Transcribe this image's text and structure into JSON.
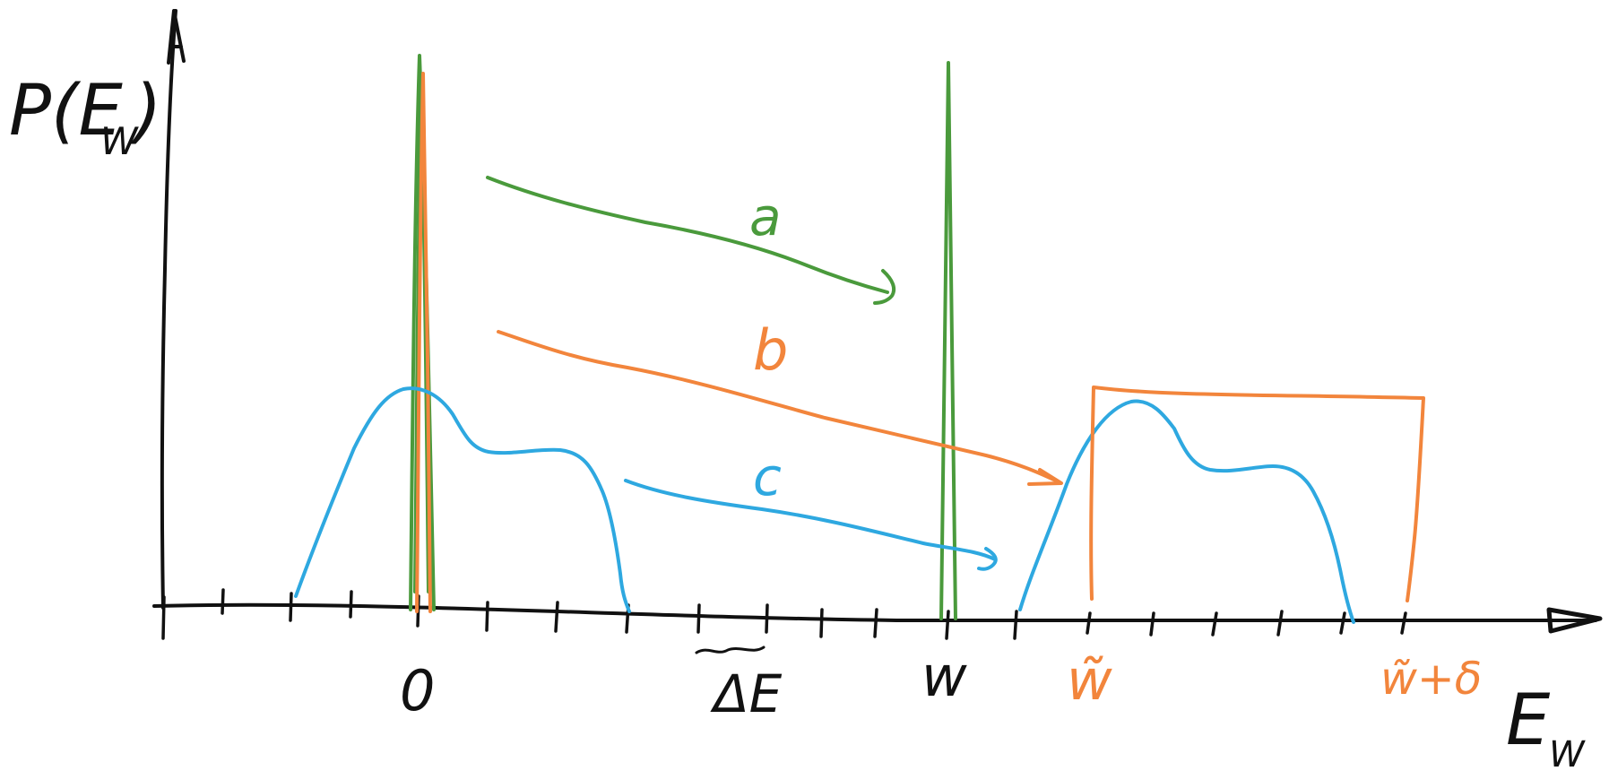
{
  "colors": {
    "axes": "#111111",
    "green": "#4a9a3c",
    "orange": "#f2853c",
    "blue": "#2ea8e0",
    "background": "#ffffff"
  },
  "labels": {
    "y_axis_main": "P(E",
    "y_axis_sub": "W",
    "y_axis_close": ")",
    "x_axis_main": "E",
    "x_axis_sub": "W",
    "tick_zero": "0",
    "tick_delta_e": "ΔE",
    "tick_w": "w",
    "tick_w_tilde": "w̃",
    "tick_w_tilde_plus_delta": "w̃+δ",
    "arrow_a": "a",
    "arrow_b": "b",
    "arrow_c": "c"
  }
}
